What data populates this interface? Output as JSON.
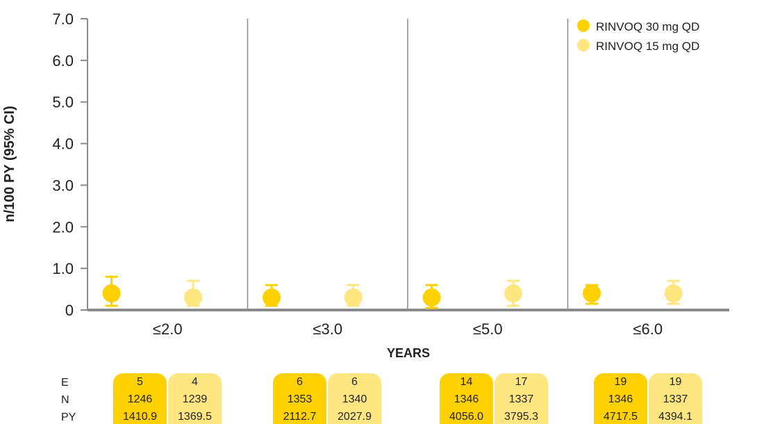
{
  "chart_data": {
    "type": "scatter",
    "ylabel": "n/100 PY (95% CI)",
    "xlabel": "YEARS",
    "ylim": [
      0,
      7
    ],
    "yticks": [
      "0",
      "1.0",
      "2.0",
      "3.0",
      "4.0",
      "5.0",
      "6.0",
      "7.0"
    ],
    "categories": [
      "≤2.0",
      "≤3.0",
      "≤5.0",
      "≤6.0"
    ],
    "legend_position": "top-right",
    "colors": {
      "dose30": "#FFD100",
      "dose15": "#FFE680",
      "axis": "#8a8a8a"
    },
    "series": [
      {
        "name": "RINVOQ 30 mg QD",
        "values": [
          0.4,
          0.3,
          0.3,
          0.4
        ],
        "ci_low": [
          0.1,
          0.1,
          0.05,
          0.15
        ],
        "ci_high": [
          0.8,
          0.6,
          0.6,
          0.6
        ]
      },
      {
        "name": "RINVOQ 15 mg QD",
        "values": [
          0.3,
          0.3,
          0.4,
          0.4
        ],
        "ci_low": [
          0.1,
          0.1,
          0.1,
          0.15
        ],
        "ci_high": [
          0.7,
          0.6,
          0.7,
          0.7
        ]
      }
    ]
  },
  "table": {
    "row_labels": [
      "E",
      "N",
      "PY"
    ],
    "groups": [
      {
        "dose30": [
          "5",
          "1246",
          "1410.9"
        ],
        "dose15": [
          "4",
          "1239",
          "1369.5"
        ]
      },
      {
        "dose30": [
          "6",
          "1353",
          "2112.7"
        ],
        "dose15": [
          "6",
          "1340",
          "2027.9"
        ]
      },
      {
        "dose30": [
          "14",
          "1346",
          "4056.0"
        ],
        "dose15": [
          "17",
          "1337",
          "3795.3"
        ]
      },
      {
        "dose30": [
          "19",
          "1346",
          "4717.5"
        ],
        "dose15": [
          "19",
          "1337",
          "4394.1"
        ]
      }
    ]
  }
}
